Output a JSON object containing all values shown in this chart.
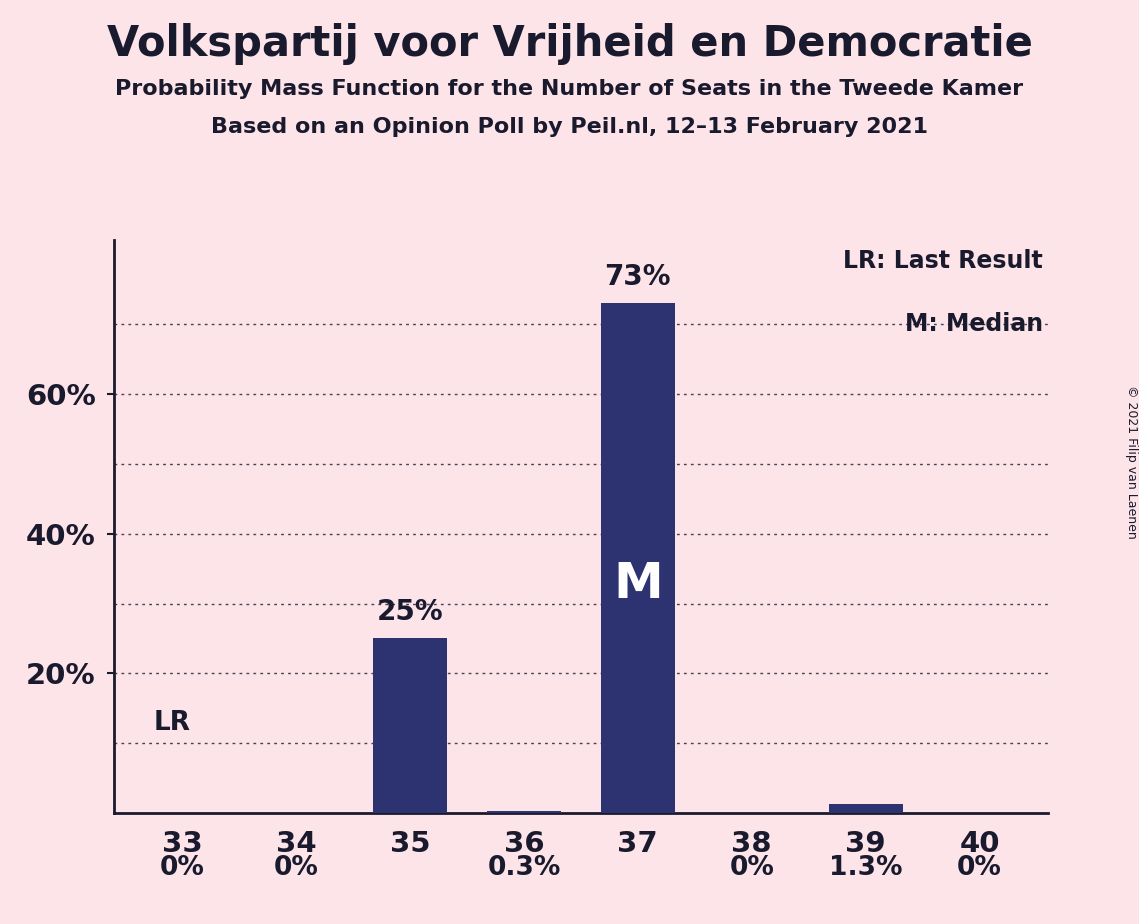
{
  "title": "Volkspartij voor Vrijheid en Democratie",
  "subtitle1": "Probability Mass Function for the Number of Seats in the Tweede Kamer",
  "subtitle2": "Based on an Opinion Poll by Peil.nl, 12–13 February 2021",
  "copyright": "© 2021 Filip van Laenen",
  "categories": [
    33,
    34,
    35,
    36,
    37,
    38,
    39,
    40
  ],
  "values": [
    0.0,
    0.0,
    0.25,
    0.003,
    0.73,
    0.0,
    0.013,
    0.0
  ],
  "bar_color": "#2d3270",
  "bg_color": "#fce4e8",
  "text_color": "#1a1a2e",
  "label_texts": [
    "0%",
    "0%",
    "25%",
    "0.3%",
    "73%",
    "0%",
    "1.3%",
    "0%"
  ],
  "yticks_major": [
    0.2,
    0.4,
    0.6
  ],
  "ytick_labels": [
    "20%",
    "40%",
    "60%"
  ],
  "grid_dotted": [
    0.1,
    0.3,
    0.5,
    0.7
  ],
  "grid_solid_dotted": [
    0.2,
    0.4,
    0.6
  ],
  "lr_value": 0.1,
  "lr_seat": 33,
  "median_seat": 37,
  "median_label": "M",
  "legend_lr": "LR: Last Result",
  "legend_m": "M: Median",
  "ylim": [
    0,
    0.82
  ],
  "bar_width": 0.65
}
